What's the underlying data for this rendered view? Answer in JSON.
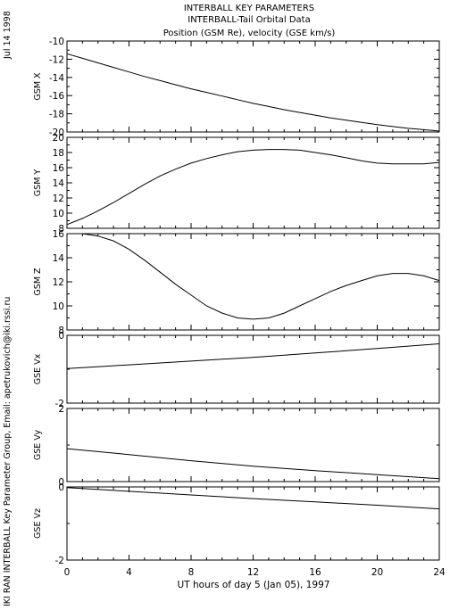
{
  "page": {
    "side_date": "Jul 14 1998",
    "side_credit": "IKI RAN INTERBALL Key Parameter Group, Email: apetrukovich@iki.rssi.ru"
  },
  "chart_data": {
    "type": "line",
    "title": [
      "INTERBALL KEY PARAMETERS",
      "INTERBALL-Tail Orbital Data",
      "Position (GSM Re), velocity (GSE km/s)"
    ],
    "xlabel": "UT hours of day   5 (Jan 05), 1997",
    "xlim": [
      0,
      24
    ],
    "xticks": [
      0,
      4,
      8,
      12,
      16,
      20,
      24
    ],
    "panels": [
      {
        "ylabel": "GSM X",
        "ylim": [
          -20,
          -10
        ],
        "yticks": [
          -20,
          -18,
          -16,
          -14,
          -12,
          -10
        ],
        "x": [
          0,
          1,
          2,
          3,
          4,
          5,
          6,
          7,
          8,
          9,
          10,
          11,
          12,
          13,
          14,
          15,
          16,
          17,
          18,
          19,
          20,
          21,
          22,
          23,
          24
        ],
        "y": [
          -11.4,
          -11.9,
          -12.4,
          -12.9,
          -13.4,
          -13.9,
          -14.35,
          -14.8,
          -15.25,
          -15.65,
          -16.05,
          -16.45,
          -16.85,
          -17.2,
          -17.55,
          -17.85,
          -18.15,
          -18.45,
          -18.7,
          -18.95,
          -19.2,
          -19.4,
          -19.6,
          -19.75,
          -19.9
        ]
      },
      {
        "ylabel": "GSM Y",
        "ylim": [
          8,
          20
        ],
        "yticks": [
          8,
          10,
          12,
          14,
          16,
          18,
          20
        ],
        "x": [
          0,
          1,
          2,
          3,
          4,
          5,
          6,
          7,
          8,
          9,
          10,
          11,
          12,
          13,
          14,
          15,
          16,
          17,
          18,
          19,
          20,
          21,
          22,
          23,
          24
        ],
        "y": [
          8.5,
          9.3,
          10.3,
          11.4,
          12.6,
          13.8,
          14.9,
          15.8,
          16.6,
          17.2,
          17.7,
          18.1,
          18.3,
          18.4,
          18.4,
          18.3,
          18.0,
          17.7,
          17.3,
          16.9,
          16.6,
          16.5,
          16.5,
          16.5,
          16.7
        ]
      },
      {
        "ylabel": "GSM Z",
        "ylim": [
          8,
          16
        ],
        "yticks": [
          8,
          10,
          12,
          14,
          16
        ],
        "x": [
          0,
          1,
          2,
          3,
          4,
          5,
          6,
          7,
          8,
          9,
          10,
          11,
          12,
          13,
          14,
          15,
          16,
          17,
          18,
          19,
          20,
          21,
          22,
          23,
          24
        ],
        "y": [
          16.0,
          16.0,
          15.8,
          15.4,
          14.7,
          13.8,
          12.8,
          11.8,
          10.9,
          10.0,
          9.4,
          9.0,
          8.9,
          9.0,
          9.4,
          10.0,
          10.6,
          11.2,
          11.7,
          12.1,
          12.5,
          12.7,
          12.7,
          12.5,
          12.1
        ]
      },
      {
        "ylabel": "GSE Vx",
        "ylim": [
          -2,
          0
        ],
        "yticks": [
          -2,
          0
        ],
        "x": [
          0,
          4,
          8,
          12,
          16,
          20,
          24
        ],
        "y": [
          -0.98,
          -0.87,
          -0.76,
          -0.65,
          -0.52,
          -0.39,
          -0.25
        ]
      },
      {
        "ylabel": "GSE Vy",
        "ylim": [
          0,
          2
        ],
        "yticks": [
          0,
          2
        ],
        "x": [
          0,
          4,
          8,
          12,
          16,
          20,
          24
        ],
        "y": [
          0.9,
          0.74,
          0.57,
          0.42,
          0.3,
          0.19,
          0.08
        ]
      },
      {
        "ylabel": "GSE Vz",
        "ylim": [
          -2,
          0
        ],
        "yticks": [
          -2,
          0
        ],
        "x": [
          0,
          4,
          8,
          12,
          16,
          20,
          24
        ],
        "y": [
          -0.02,
          -0.12,
          -0.22,
          -0.32,
          -0.41,
          -0.5,
          -0.6
        ]
      }
    ]
  }
}
